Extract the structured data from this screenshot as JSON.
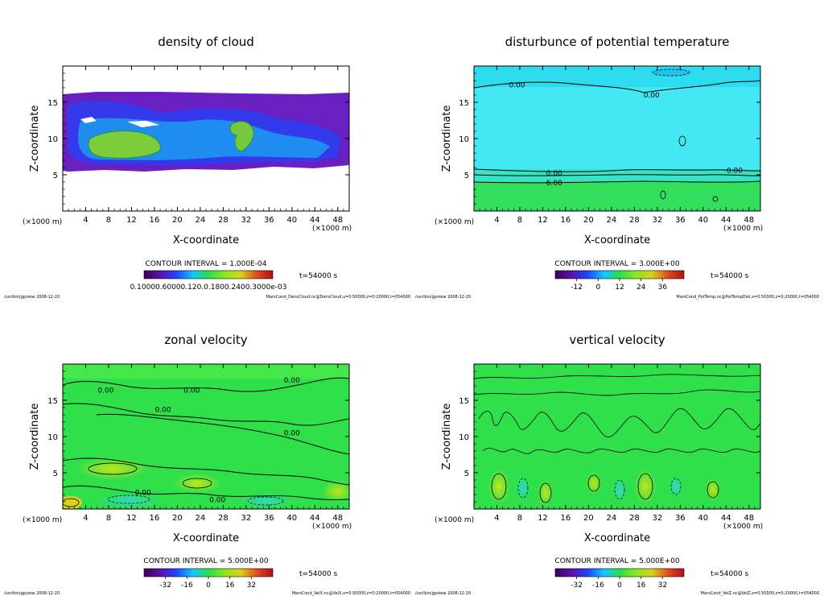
{
  "chart_data": [
    {
      "type": "heatmap",
      "title": "density of cloud",
      "xlabel": "X-coordinate",
      "ylabel": "Z-coordinate",
      "x_unit": "(×1000 m)",
      "z_unit": "(×1000 m)",
      "xlim": [
        0,
        50
      ],
      "ylim": [
        0,
        20
      ],
      "x_ticks": [
        4,
        8,
        12,
        16,
        20,
        24,
        28,
        32,
        36,
        40,
        44,
        48
      ],
      "y_ticks": [
        5,
        10,
        15
      ],
      "contour_interval": "CONTOUR INTERVAL = 1.000E-04",
      "time_label": "t=54000 s",
      "colorbar_tick_labels": "0.10000.60000.120.0.1800.2400.3000e-03",
      "footer_left": "/usr/bin/gpview   2008-12-20",
      "footer_right": "MarsCond_DensCloud.nc@DensCloud,x=0:50000,z=0:20000,t=054000",
      "contour_labels": []
    },
    {
      "type": "heatmap",
      "title": "disturbunce of potential temperature",
      "xlabel": "X-coordinate",
      "ylabel": "Z-coordinate",
      "x_unit": "(×1000 m)",
      "z_unit": "(×1000 m)",
      "xlim": [
        0,
        50
      ],
      "ylim": [
        0,
        20
      ],
      "x_ticks": [
        4,
        8,
        12,
        16,
        20,
        24,
        28,
        32,
        36,
        40,
        44,
        48
      ],
      "y_ticks": [
        5,
        10,
        15
      ],
      "contour_interval": "CONTOUR INTERVAL = 3.000E+00",
      "time_label": "t=54000 s",
      "colorbar_ticks": [
        "-12",
        "0",
        "12",
        "24",
        "36"
      ],
      "footer_left": "/usr/bin/gpview   2008-12-20",
      "footer_right": "MarsCond_PotTemp.nc@PotTempDist,x=0:50000,z=0:20000,t=054000",
      "contour_labels": [
        {
          "text": "0.00",
          "x": 7.5,
          "z": 17.4
        },
        {
          "text": "0.00",
          "x": 31.0,
          "z": 16.0
        },
        {
          "text": "0.00",
          "x": 14.0,
          "z": 5.2
        },
        {
          "text": "0.00",
          "x": 45.5,
          "z": 5.6
        },
        {
          "text": "6.00",
          "x": 14.0,
          "z": 3.9
        }
      ]
    },
    {
      "type": "heatmap",
      "title": "zonal velocity",
      "xlabel": "X-coordinate",
      "ylabel": "Z-coordinate",
      "x_unit": "(×1000 m)",
      "z_unit": "(×1000 m)",
      "xlim": [
        0,
        50
      ],
      "ylim": [
        0,
        20
      ],
      "x_ticks": [
        4,
        8,
        12,
        16,
        20,
        24,
        28,
        32,
        36,
        40,
        44,
        48
      ],
      "y_ticks": [
        5,
        10,
        15
      ],
      "contour_interval": "CONTOUR INTERVAL = 5.000E+00",
      "time_label": "t=54000 s",
      "colorbar_ticks": [
        "-32",
        "-16",
        "0",
        "16",
        "32"
      ],
      "footer_left": "/usr/bin/gpview   2008-12-20",
      "footer_right": "MarsCond_VelX.nc@VelX,x=0:50000,z=0:20000,t=054000",
      "contour_labels": [
        {
          "text": "0.00",
          "x": 7.5,
          "z": 16.4
        },
        {
          "text": "0.00",
          "x": 22.5,
          "z": 16.4
        },
        {
          "text": "0.00",
          "x": 40.0,
          "z": 17.8
        },
        {
          "text": "0.00",
          "x": 17.5,
          "z": 13.7
        },
        {
          "text": "0.00",
          "x": 40.0,
          "z": 10.5
        },
        {
          "text": "0.00",
          "x": 14.0,
          "z": 2.3
        },
        {
          "text": "0.00",
          "x": 27.0,
          "z": 1.3
        }
      ]
    },
    {
      "type": "heatmap",
      "title": "vertical velocity",
      "xlabel": "X-coordinate",
      "ylabel": "Z-coordinate",
      "x_unit": "(×1000 m)",
      "z_unit": "(×1000 m)",
      "xlim": [
        0,
        50
      ],
      "ylim": [
        0,
        20
      ],
      "x_ticks": [
        4,
        8,
        12,
        16,
        20,
        24,
        28,
        32,
        36,
        40,
        44,
        48
      ],
      "y_ticks": [
        5,
        10,
        15
      ],
      "contour_interval": "CONTOUR INTERVAL = 5.000E+00",
      "time_label": "t=54000 s",
      "colorbar_ticks": [
        "-32",
        "-16",
        "0",
        "16",
        "32"
      ],
      "footer_left": "/usr/bin/gpview   2008-12-20",
      "footer_right": "MarsCond_VelZ.nc@VelZ,x=0:50000,z=0:20000,t=054000",
      "contour_labels": []
    }
  ]
}
